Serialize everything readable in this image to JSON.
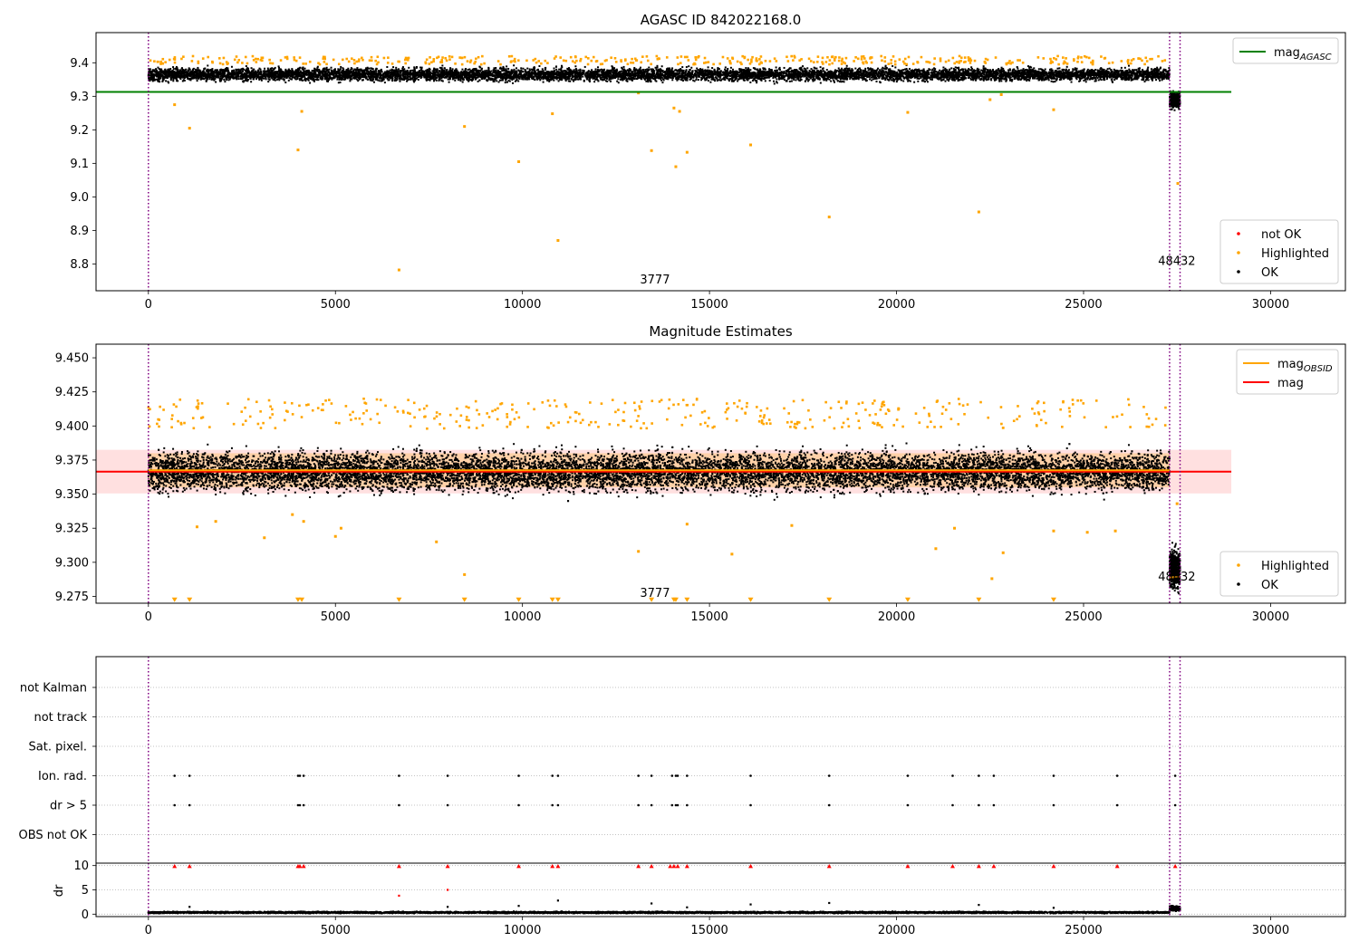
{
  "chart_data": [
    {
      "type": "scatter",
      "title": "AGASC ID 842022168.0",
      "xlabel": "",
      "ylabel": "",
      "xlim": [
        -1400,
        32000
      ],
      "ylim": [
        8.72,
        9.49
      ],
      "xticks": [
        0,
        5000,
        10000,
        15000,
        20000,
        25000,
        30000
      ],
      "yticks": [
        8.8,
        8.9,
        9.0,
        9.1,
        9.2,
        9.3,
        9.4
      ],
      "ytick_labels": [
        "8.8",
        "8.9",
        "9.0",
        "9.1",
        "9.2",
        "9.3",
        "9.4"
      ],
      "grid": false,
      "legend_top": {
        "position": "top-right",
        "entries": [
          {
            "label": "mag",
            "subscript": "AGASC",
            "color": "#008000",
            "style": "line"
          }
        ]
      },
      "legend_bottom": {
        "position": "bottom-right",
        "entries": [
          {
            "label": "not OK",
            "color": "#ff0000",
            "style": "dot"
          },
          {
            "label": "Highlighted",
            "color": "#ffa500",
            "style": "dot"
          },
          {
            "label": "OK",
            "color": "#000000",
            "style": "dot"
          }
        ]
      },
      "vlines": [
        {
          "x": 0,
          "color": "#800080",
          "style": "dotted"
        },
        {
          "x": 27300,
          "color": "#800080",
          "style": "dotted"
        },
        {
          "x": 27580,
          "color": "#800080",
          "style": "dotted"
        }
      ],
      "hlines": [
        {
          "y": 9.313,
          "x_range": [
            -1400,
            28950
          ],
          "color": "#008000",
          "label": "mag_AGASC"
        }
      ],
      "annotations": [
        {
          "text": "3777",
          "x": 13300,
          "y": 8.755
        },
        {
          "text": "48432",
          "x": 27250,
          "y": 8.81
        }
      ],
      "series": [
        {
          "name": "OK",
          "color": "#000000",
          "kind": "band",
          "x_range": [
            0,
            27300
          ],
          "y_center": 9.365,
          "y_spread": 0.04,
          "dense": true
        },
        {
          "name": "OK",
          "color": "#000000",
          "kind": "band",
          "x_range": [
            27300,
            27580
          ],
          "y_center": 9.29,
          "y_spread": 0.05,
          "dense": true
        },
        {
          "name": "Highlighted",
          "color": "#ffa500",
          "kind": "points",
          "x": [
            700,
            1100,
            4000,
            4100,
            8450,
            9900,
            10800,
            10950,
            13100,
            13450,
            14050,
            14100,
            14200,
            14400,
            16100,
            18200,
            20300,
            22200,
            22500,
            22800,
            24200,
            27520
          ],
          "y": [
            9.275,
            9.205,
            9.14,
            9.255,
            9.21,
            9.105,
            9.248,
            8.87,
            9.31,
            9.138,
            9.265,
            9.09,
            9.255,
            9.133,
            9.155,
            8.94,
            9.252,
            8.955,
            9.29,
            9.305,
            9.26,
            9.04
          ]
        },
        {
          "name": "Highlighted",
          "color": "#ffa500",
          "kind": "points",
          "x": [
            6700
          ],
          "y": [
            8.782
          ]
        }
      ]
    },
    {
      "type": "scatter",
      "title": "Magnitude Estimates",
      "xlabel": "",
      "ylabel": "",
      "xlim": [
        -1400,
        32000
      ],
      "ylim": [
        9.27,
        9.46
      ],
      "xticks": [
        0,
        5000,
        10000,
        15000,
        20000,
        25000,
        30000
      ],
      "yticks": [
        9.275,
        9.3,
        9.325,
        9.35,
        9.375,
        9.4,
        9.425,
        9.45
      ],
      "ytick_labels": [
        "9.275",
        "9.300",
        "9.325",
        "9.350",
        "9.375",
        "9.400",
        "9.425",
        "9.450"
      ],
      "grid": false,
      "legend_top": {
        "position": "top-right",
        "entries": [
          {
            "label": "mag",
            "subscript": "OBSID",
            "color": "#ffa500",
            "style": "line"
          },
          {
            "label": "mag",
            "subscript": "",
            "color": "#ff0000",
            "style": "line"
          }
        ]
      },
      "legend_bottom": {
        "position": "bottom-right",
        "entries": [
          {
            "label": "Highlighted",
            "color": "#ffa500",
            "style": "dot"
          },
          {
            "label": "OK",
            "color": "#000000",
            "style": "dot"
          }
        ]
      },
      "vlines": [
        {
          "x": 0,
          "color": "#800080",
          "style": "dotted"
        },
        {
          "x": 27300,
          "color": "#800080",
          "style": "dotted"
        },
        {
          "x": 27580,
          "color": "#800080",
          "style": "dotted"
        }
      ],
      "hlines": [
        {
          "y": 9.3665,
          "x_range": [
            -1400,
            28950
          ],
          "color": "#ff0000",
          "label": "mag"
        },
        {
          "y": 9.3675,
          "x_range": [
            0,
            27300
          ],
          "color": "#ffa500",
          "label": "mag_OBSID"
        },
        {
          "y": 9.289,
          "x_range": [
            27300,
            27580
          ],
          "color": "#ffa500",
          "label": "mag_OBSID"
        }
      ],
      "bands": [
        {
          "y_range": [
            9.3505,
            9.3825
          ],
          "x_range": [
            -1400,
            28950
          ],
          "color": "#ff0000",
          "opacity": 0.12
        },
        {
          "y_range": [
            9.355,
            9.38
          ],
          "x_range": [
            0,
            27300
          ],
          "color": "#ffa500",
          "opacity": 0.25
        }
      ],
      "annotations": [
        {
          "text": "3777",
          "x": 13300,
          "y": 9.278
        },
        {
          "text": "48432",
          "x": 27250,
          "y": 9.29
        }
      ],
      "series": [
        {
          "name": "OK",
          "color": "#000000",
          "kind": "band",
          "x_range": [
            0,
            27300
          ],
          "y_center": 9.3665,
          "y_spread": 0.03,
          "dense": true
        },
        {
          "name": "OK",
          "color": "#000000",
          "kind": "band",
          "x_range": [
            27300,
            27580
          ],
          "y_center": 9.295,
          "y_spread": 0.03,
          "dense": true
        },
        {
          "name": "Highlighted",
          "color": "#ffa500",
          "kind": "points",
          "x": [
            1300,
            1800,
            3100,
            3850,
            4150,
            5000,
            5150,
            7700,
            8450,
            13100,
            14400,
            15600,
            17200,
            21050,
            21550,
            22550,
            22850,
            24200,
            25100,
            25850,
            27500
          ],
          "y": [
            9.326,
            9.33,
            9.318,
            9.335,
            9.33,
            9.319,
            9.325,
            9.315,
            9.291,
            9.308,
            9.328,
            9.306,
            9.327,
            9.31,
            9.325,
            9.288,
            9.307,
            9.323,
            9.322,
            9.323,
            9.343
          ]
        },
        {
          "name": "Highlighted",
          "color": "#ffa500",
          "kind": "triangles",
          "x": [
            700,
            1100,
            4000,
            4100,
            6700,
            8450,
            9900,
            10800,
            10950,
            13450,
            14050,
            14100,
            14400,
            16100,
            18200,
            20300,
            22200,
            24200
          ],
          "y": [
            9.2725,
            9.2725,
            9.2725,
            9.2725,
            9.2725,
            9.2725,
            9.2725,
            9.2725,
            9.2725,
            9.2725,
            9.2725,
            9.2725,
            9.2725,
            9.2725,
            9.2725,
            9.2725,
            9.2725,
            9.2725
          ]
        }
      ]
    },
    {
      "type": "scatter",
      "title": "",
      "xlabel": "",
      "ylabel": "",
      "xlim": [
        -1400,
        32000
      ],
      "xticks": [],
      "grid": true,
      "flag_categories": [
        "not Kalman",
        "not track",
        "Sat. pixel.",
        "Ion. rad.",
        "dr > 5",
        "OBS not OK"
      ],
      "vlines": [
        {
          "x": 0,
          "color": "#800080",
          "style": "dotted"
        },
        {
          "x": 27300,
          "color": "#800080",
          "style": "dotted"
        },
        {
          "x": 27580,
          "color": "#800080",
          "style": "dotted"
        }
      ],
      "series": [
        {
          "name": "Ion. rad.",
          "color": "#000000",
          "kind": "points",
          "x": [
            700,
            1100,
            4000,
            4050,
            4150,
            6700,
            8000,
            9900,
            10800,
            10950,
            13100,
            13450,
            14000,
            14100,
            14150,
            14400,
            16100,
            18200,
            20300,
            21500,
            22200,
            22600,
            24200,
            25900,
            27450
          ]
        },
        {
          "name": "dr > 5",
          "color": "#000000",
          "kind": "points",
          "x": [
            700,
            1100,
            4000,
            4050,
            4150,
            6700,
            8000,
            9900,
            10800,
            10950,
            13100,
            13450,
            14000,
            14100,
            14150,
            14400,
            16100,
            18200,
            20300,
            21500,
            22200,
            22600,
            24200,
            25900,
            27450
          ]
        }
      ]
    },
    {
      "type": "scatter",
      "title": "",
      "xlabel": "",
      "ylabel": "dr",
      "xlim": [
        -1400,
        32000
      ],
      "ylim": [
        -0.5,
        10.5
      ],
      "xticks": [
        0,
        5000,
        10000,
        15000,
        20000,
        25000,
        30000
      ],
      "yticks": [
        0,
        5,
        10
      ],
      "ytick_labels": [
        "0",
        "5",
        "10"
      ],
      "grid": true,
      "vlines": [
        {
          "x": 0,
          "color": "#800080",
          "style": "dotted"
        },
        {
          "x": 27300,
          "color": "#800080",
          "style": "dotted"
        },
        {
          "x": 27580,
          "color": "#800080",
          "style": "dotted"
        }
      ],
      "series": [
        {
          "name": "OK",
          "color": "#000000",
          "kind": "band",
          "x_range": [
            0,
            27300
          ],
          "y_center": 0.35,
          "y_spread": 0.35,
          "dense": true
        },
        {
          "name": "OK",
          "color": "#000000",
          "kind": "band",
          "x_range": [
            27300,
            27580
          ],
          "y_center": 1.2,
          "y_spread": 1.0,
          "dense": true
        },
        {
          "name": "OK",
          "color": "#000000",
          "kind": "points",
          "x": [
            1100,
            8000,
            9900,
            10950,
            13450,
            14400,
            16100,
            18200,
            22200,
            24200
          ],
          "y": [
            1.5,
            1.5,
            1.7,
            2.8,
            2.2,
            1.4,
            2.0,
            2.3,
            1.9,
            1.3
          ]
        },
        {
          "name": "not OK",
          "color": "#ff0000",
          "kind": "triangles",
          "x": [
            700,
            1100,
            4000,
            4050,
            4150,
            6700,
            8000,
            9900,
            10800,
            10950,
            13100,
            13450,
            13950,
            14050,
            14150,
            14400,
            16100,
            18200,
            20300,
            21500,
            22200,
            22600,
            24200,
            25900,
            27450
          ],
          "y": [
            9.9,
            9.9,
            9.9,
            9.9,
            9.9,
            9.9,
            9.9,
            9.9,
            9.9,
            9.9,
            9.9,
            9.9,
            9.9,
            9.9,
            9.9,
            9.9,
            9.9,
            9.9,
            9.9,
            9.9,
            9.9,
            9.9,
            9.9,
            9.9,
            9.9
          ]
        },
        {
          "name": "not OK",
          "color": "#ff0000",
          "kind": "points",
          "x": [
            6700,
            8000
          ],
          "y": [
            3.8,
            5.0
          ]
        }
      ]
    }
  ]
}
